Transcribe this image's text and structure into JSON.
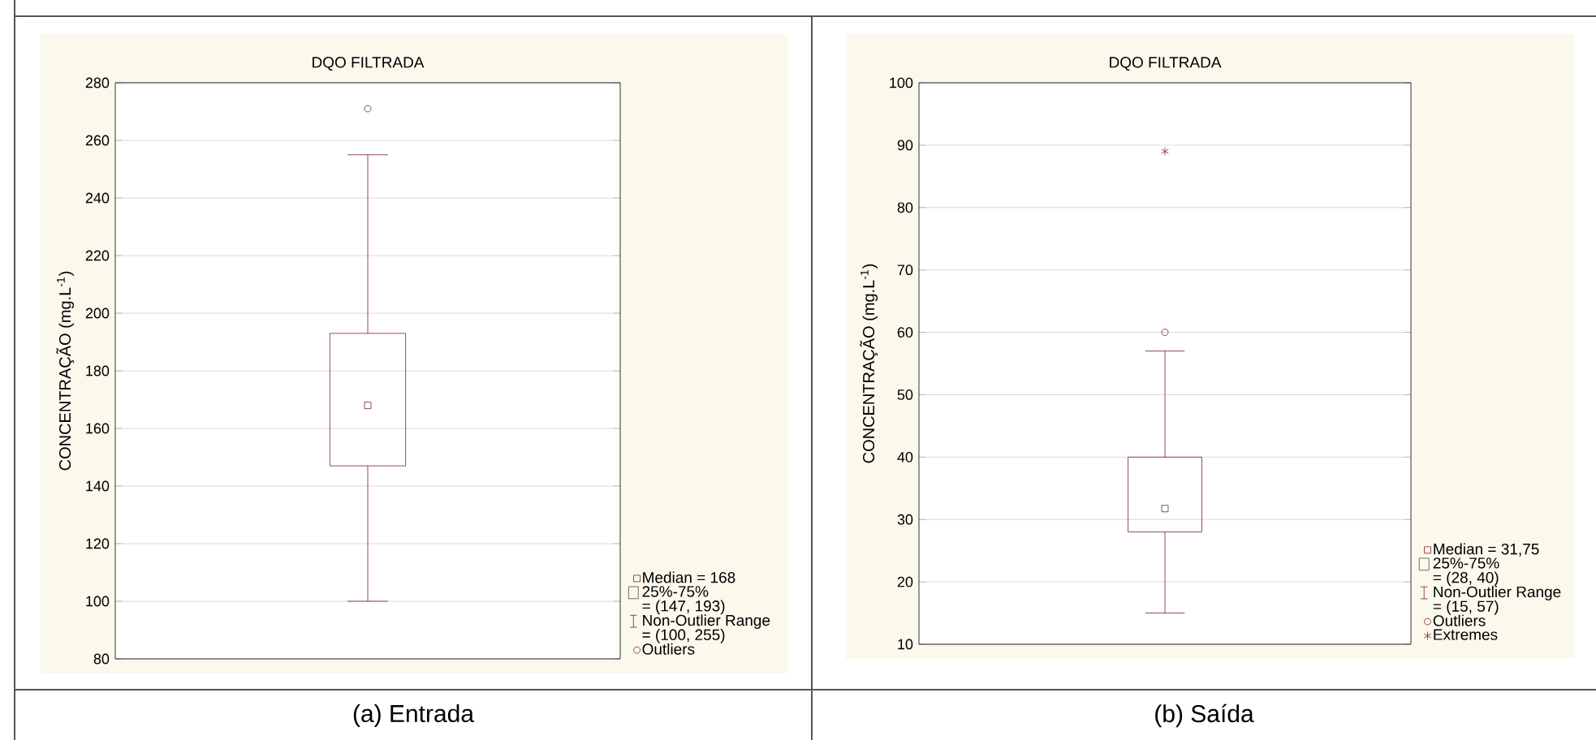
{
  "chart_data": [
    {
      "type": "box",
      "title": "DQO FILTRADA",
      "ylabel": "CONCENTRAÇÃO (mg.L$^{-1}$)",
      "categories": [
        null
      ],
      "ylim": [
        80,
        280
      ],
      "yticks": [
        80,
        100,
        120,
        140,
        160,
        180,
        200,
        220,
        240,
        260,
        280
      ],
      "grid": "y",
      "tick_labels": "y",
      "series": [
        {
          "color": "#7a1f24",
          "boxes": [
            {
              "low": 100,
              "q1": 147,
              "median": 168,
              "q3": 193,
              "high": 255,
              "outliers": [
                271
              ]
            }
          ]
        }
      ],
      "annotations": [
        "Median = 168",
        "25%-75%",
        "= (147, 193)",
        "Non-Outlier Range",
        "= (100, 255)",
        "Outliers",
        "(a) Entrada"
      ]
    },
    {
      "type": "box",
      "title": "DQO FILTRADA",
      "ylabel": "CONCENTRAÇÃO (mg.L$^{-1}$)",
      "categories": [
        null
      ],
      "ylim": [
        10,
        100
      ],
      "yticks": [
        10,
        20,
        30,
        40,
        50,
        60,
        70,
        80,
        90,
        100
      ],
      "grid": "y",
      "tick_labels": "y",
      "legend": "right",
      "series": [
        {
          "color": "#7a1f24",
          "boxes": [
            {
              "low": 15,
              "q1": 28,
              "median": 31.75,
              "q3": 40,
              "high": 57,
              "outliers": [
                60
              ]
            }
          ]
        },
        {
          "type": "scatter",
          "name": "Extremes",
          "marker": "cross",
          "color": "#7a1f24",
          "values": [
            89
          ]
        }
      ],
      "annotations": [
        "Median = 31,75",
        "25%-75%",
        "= (28, 40)",
        "Non-Outlier Range",
        "= (15, 57)",
        "Outliers",
        "(b) Saída"
      ]
    }
  ]
}
